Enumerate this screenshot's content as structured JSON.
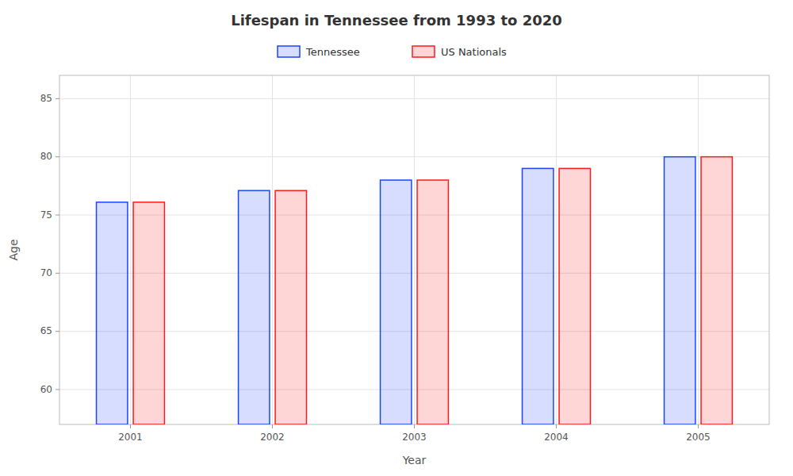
{
  "chart_data": {
    "type": "bar",
    "title": "Lifespan in Tennessee from 1993 to 2020",
    "xlabel": "Year",
    "ylabel": "Age",
    "categories": [
      "2001",
      "2002",
      "2003",
      "2004",
      "2005"
    ],
    "series": [
      {
        "name": "Tennessee",
        "color": "#1a44ff",
        "values": [
          76.1,
          77.1,
          78.0,
          79.0,
          80.0
        ]
      },
      {
        "name": "US Nationals",
        "color": "#ff1a1a",
        "values": [
          76.1,
          77.1,
          78.0,
          79.0,
          80.0
        ]
      }
    ],
    "ylim": [
      57,
      87
    ],
    "yticks": [
      60,
      65,
      70,
      75,
      80,
      85
    ],
    "grid": true,
    "legend": "top"
  }
}
